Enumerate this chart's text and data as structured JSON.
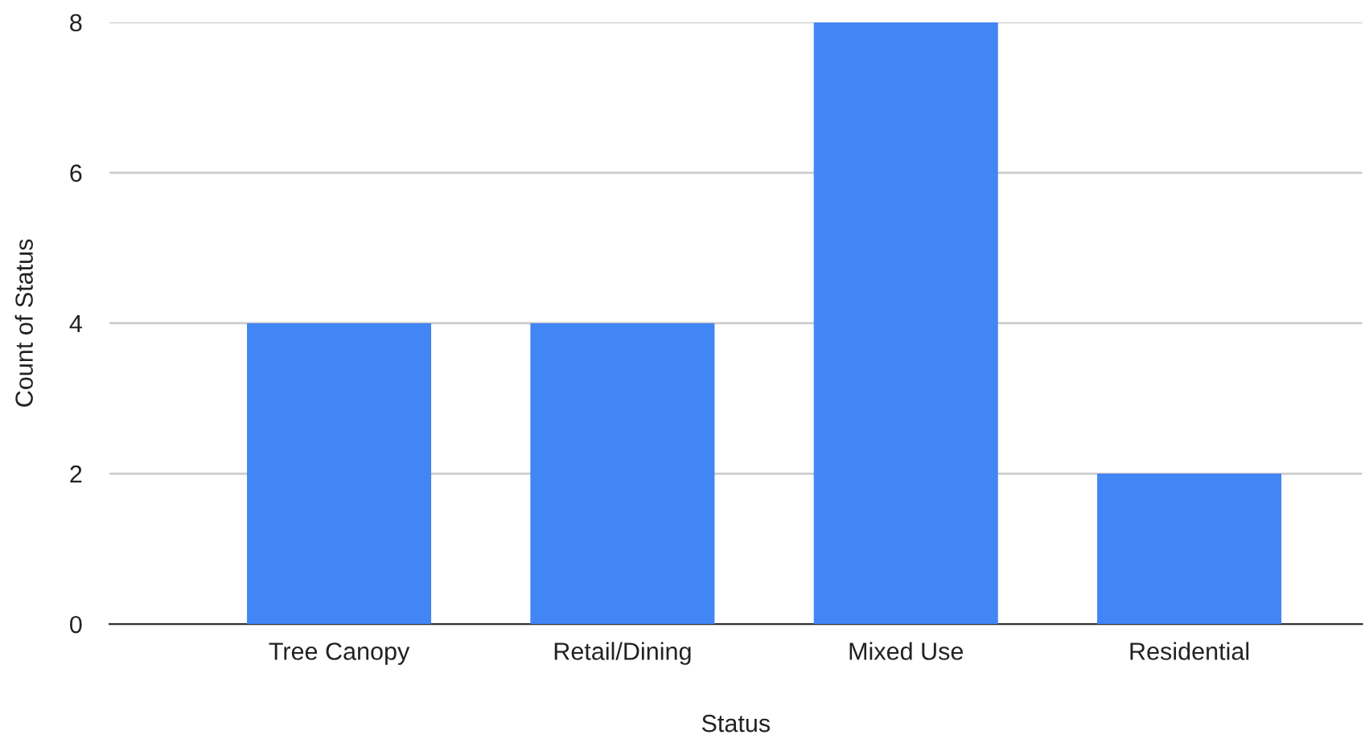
{
  "chart_data": {
    "type": "bar",
    "xlabel": "Status",
    "ylabel": "Count of Status",
    "categories": [
      "Tree Canopy",
      "Retail/Dining",
      "Mixed Use",
      "Residential"
    ],
    "values": [
      4,
      4,
      8,
      2
    ],
    "color": "#4285f4",
    "ylim": [
      0,
      8
    ],
    "yticks": [
      0,
      2,
      4,
      6,
      8
    ],
    "grid": "y"
  }
}
